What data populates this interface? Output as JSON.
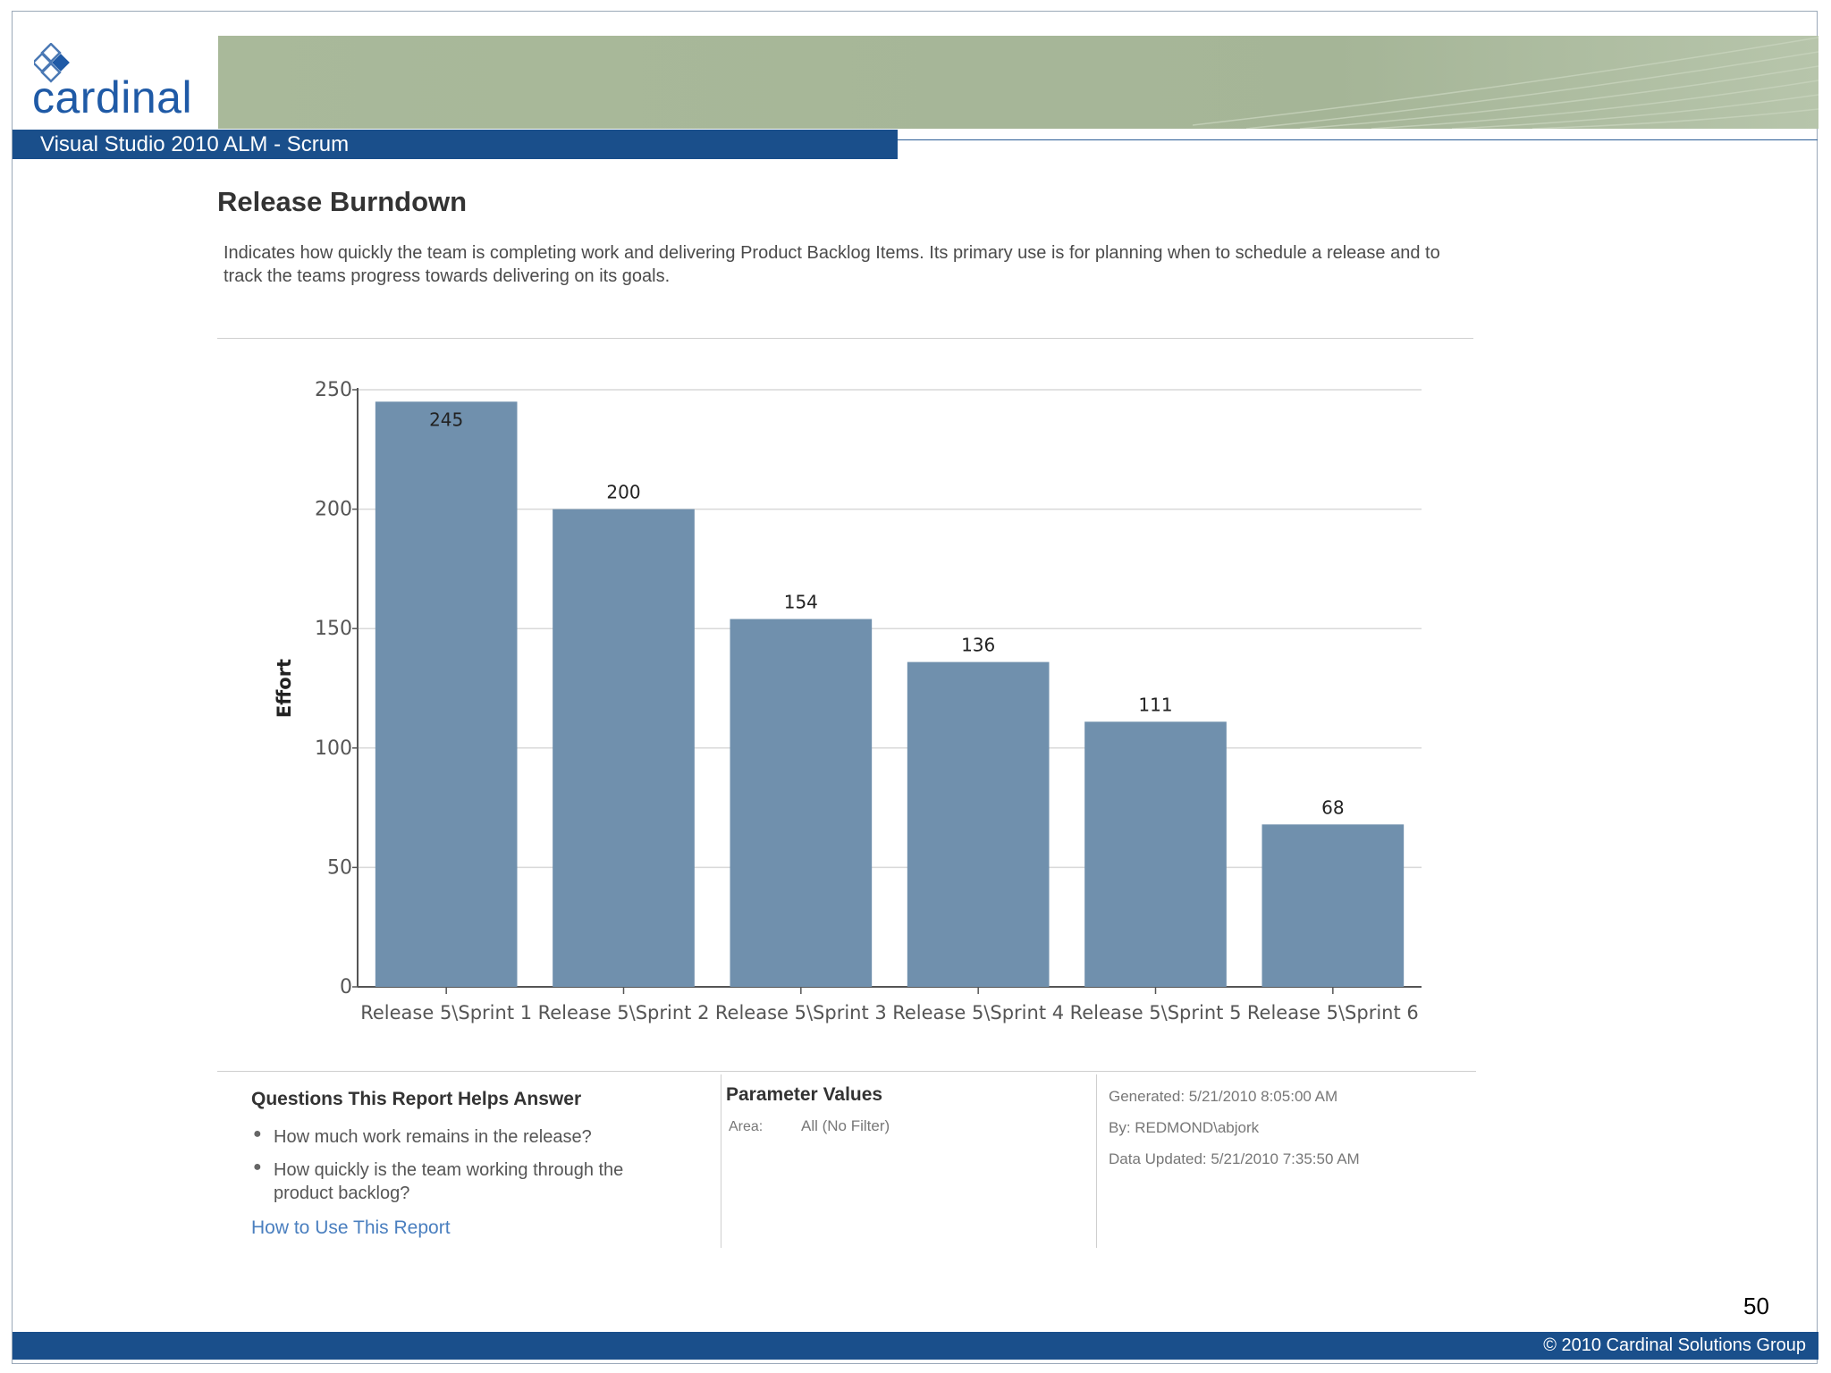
{
  "header": {
    "logo_text": "cardinal",
    "course_title": "Visual Studio 2010 ALM - Scrum"
  },
  "report": {
    "title": "Release Burndown",
    "description": "Indicates how quickly the team is completing work and delivering Product Backlog Items. Its primary use is for planning when to schedule a release and to track the teams progress towards delivering on its goals."
  },
  "chart_data": {
    "type": "bar",
    "title": "",
    "xlabel": "",
    "ylabel": "Effort",
    "ylim": [
      0,
      250
    ],
    "yticks": [
      0,
      50,
      100,
      150,
      200,
      250
    ],
    "grid": true,
    "categories": [
      "Release 5\\Sprint 1",
      "Release 5\\Sprint 2",
      "Release 5\\Sprint 3",
      "Release 5\\Sprint 4",
      "Release 5\\Sprint 5",
      "Release 5\\Sprint 6"
    ],
    "values": [
      245,
      200,
      154,
      136,
      111,
      68
    ],
    "bar_color": "#7090ad"
  },
  "questions": {
    "title": "Questions This Report Helps Answer",
    "items": [
      "How much work remains in the release?",
      "How quickly is the team working through the product backlog?"
    ],
    "link": "How to Use This Report"
  },
  "parameters": {
    "title": "Parameter Values",
    "area_label": "Area:",
    "area_value": "All (No Filter)"
  },
  "meta": {
    "generated": "Generated: 5/21/2010 8:05:00 AM",
    "by": "By: REDMOND\\abjork",
    "updated": "Data Updated: 5/21/2010 7:35:50 AM"
  },
  "footer": {
    "page_number": "50",
    "copyright": "© 2010 Cardinal Solutions Group"
  }
}
